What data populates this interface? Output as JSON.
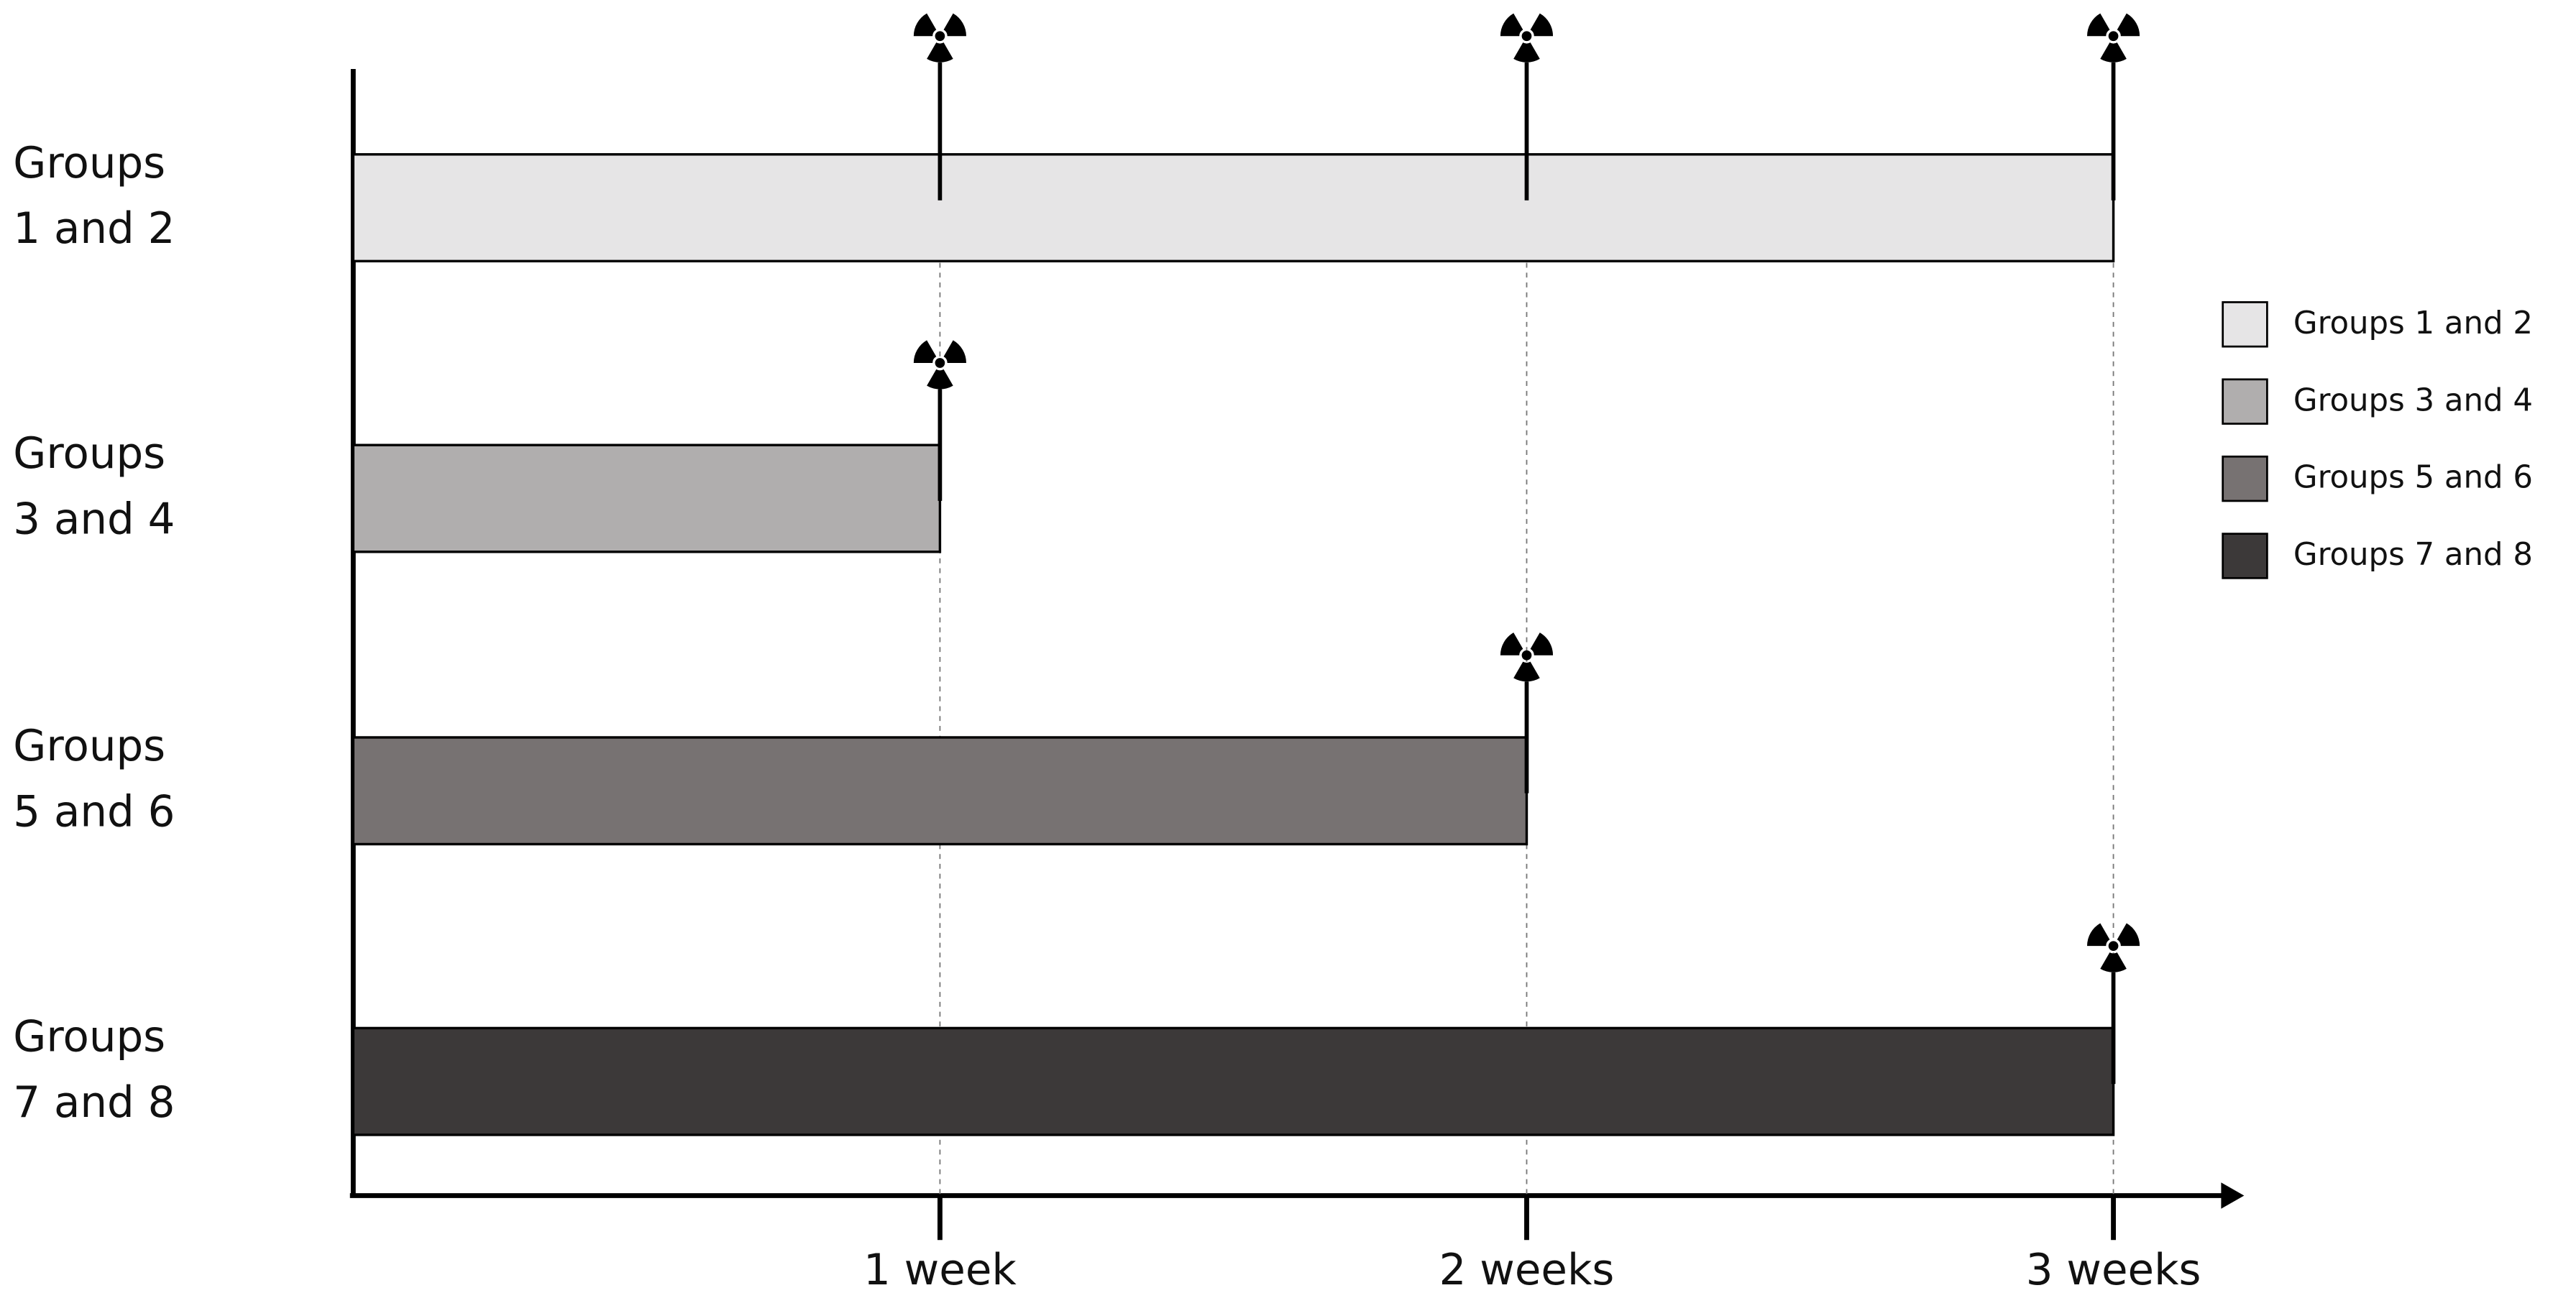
{
  "chart_data": {
    "type": "timeline-bar",
    "categories": [
      "Groups 1 and 2",
      "Groups 3 and 4",
      "Groups 5 and 6",
      "Groups 7 and 8"
    ],
    "values": [
      3,
      1,
      2,
      3
    ],
    "sample_times": [
      [
        1,
        2,
        3
      ],
      [
        1
      ],
      [
        2
      ],
      [
        3
      ]
    ],
    "colors": [
      "#e6e5e6",
      "#b0aeae",
      "#777272",
      "#3c3939"
    ],
    "xlim": [
      0,
      3.22
    ],
    "xticks": [
      {
        "value": 1,
        "label": "1 week"
      },
      {
        "value": 2,
        "label": "2 weeks"
      },
      {
        "value": 3,
        "label": "3 weeks"
      }
    ],
    "grid": true,
    "legend": "right"
  }
}
